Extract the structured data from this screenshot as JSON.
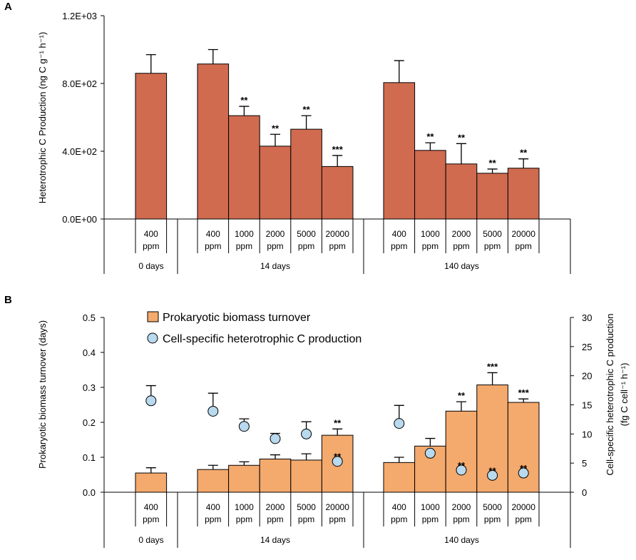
{
  "chart_data": [
    {
      "panel": "A",
      "type": "bar",
      "ylabel": "Heterotrophic C Production (ng C g⁻¹ h⁻¹)",
      "ylim": [
        0,
        1200
      ],
      "yticks": [
        0,
        400,
        800,
        1200
      ],
      "ytick_labels": [
        "0.0E+00",
        "4.0E+02",
        "8.0E+02",
        "1.2E+03"
      ],
      "groups": [
        {
          "label": "0 days",
          "categories": [
            [
              "400",
              "ppm"
            ]
          ],
          "values": [
            860
          ],
          "errors": [
            110
          ],
          "stars": [
            ""
          ]
        },
        {
          "label": "14 days",
          "categories": [
            [
              "400",
              "ppm"
            ],
            [
              "1000",
              "ppm"
            ],
            [
              "2000",
              "ppm"
            ],
            [
              "5000",
              "ppm"
            ],
            [
              "20000",
              "ppm"
            ]
          ],
          "values": [
            915,
            610,
            430,
            530,
            310
          ],
          "errors": [
            85,
            55,
            70,
            80,
            65
          ],
          "stars": [
            "",
            "**",
            "**",
            "**",
            "***"
          ]
        },
        {
          "label": "140 days",
          "categories": [
            [
              "400",
              "ppm"
            ],
            [
              "1000",
              "ppm"
            ],
            [
              "2000",
              "ppm"
            ],
            [
              "5000",
              "ppm"
            ],
            [
              "20000",
              "ppm"
            ]
          ],
          "values": [
            805,
            405,
            325,
            270,
            300
          ],
          "errors": [
            130,
            45,
            120,
            25,
            55
          ],
          "stars": [
            "",
            "**",
            "**",
            "**",
            "**"
          ]
        }
      ]
    },
    {
      "panel": "B",
      "type": "bar+scatter",
      "ylabel": "Prokaryotic biomass turnover (days)",
      "y2label_line1": "Cell-specific  heterotrophic C production",
      "y2label_line2": "(fg C cell⁻¹ h⁻¹)",
      "ylim": [
        0,
        0.5
      ],
      "yticks": [
        0,
        0.1,
        0.2,
        0.3,
        0.4,
        0.5
      ],
      "ytick_labels": [
        "0.0",
        "0.1",
        "0.2",
        "0.3",
        "0.4",
        "0.5"
      ],
      "y2lim": [
        0,
        30
      ],
      "y2ticks": [
        0,
        5,
        10,
        15,
        20,
        25,
        30
      ],
      "y2tick_labels": [
        "0",
        "5",
        "10",
        "15",
        "20",
        "25",
        "30"
      ],
      "legend": [
        "Prokaryotic biomass turnover",
        "Cell-specific heterotrophic C production"
      ],
      "groups": [
        {
          "label": "0 days",
          "categories": [
            [
              "400",
              "ppm"
            ]
          ],
          "bar_values": [
            0.055
          ],
          "bar_errors": [
            0.015
          ],
          "bar_stars": [
            ""
          ],
          "dot_values": [
            15.7
          ],
          "dot_errors": [
            2.6
          ],
          "dot_stars": [
            ""
          ]
        },
        {
          "label": "14 days",
          "categories": [
            [
              "400",
              "ppm"
            ],
            [
              "1000",
              "ppm"
            ],
            [
              "2000",
              "ppm"
            ],
            [
              "5000",
              "ppm"
            ],
            [
              "20000",
              "ppm"
            ]
          ],
          "bar_values": [
            0.065,
            0.077,
            0.095,
            0.092,
            0.163
          ],
          "bar_errors": [
            0.012,
            0.01,
            0.012,
            0.018,
            0.018
          ],
          "bar_stars": [
            "",
            "",
            "",
            "",
            "**"
          ],
          "dot_values": [
            13.9,
            11.3,
            9.2,
            10.0,
            5.3
          ],
          "dot_errors": [
            3.1,
            1.3,
            0.9,
            2.1,
            0
          ],
          "dot_stars": [
            "",
            "",
            "",
            "",
            "**"
          ]
        },
        {
          "label": "140 days",
          "categories": [
            [
              "400",
              "ppm"
            ],
            [
              "1000",
              "ppm"
            ],
            [
              "2000",
              "ppm"
            ],
            [
              "5000",
              "ppm"
            ],
            [
              "20000",
              "ppm"
            ]
          ],
          "bar_values": [
            0.085,
            0.132,
            0.232,
            0.307,
            0.257
          ],
          "bar_errors": [
            0.015,
            0.022,
            0.027,
            0.035,
            0.01
          ],
          "bar_stars": [
            "",
            "",
            "**",
            "***",
            "***"
          ],
          "dot_values": [
            11.8,
            6.7,
            3.8,
            2.9,
            3.3
          ],
          "dot_errors": [
            3.1,
            0,
            0,
            0,
            0
          ],
          "dot_stars": [
            "",
            "",
            "**",
            "**",
            "**"
          ]
        }
      ]
    }
  ]
}
